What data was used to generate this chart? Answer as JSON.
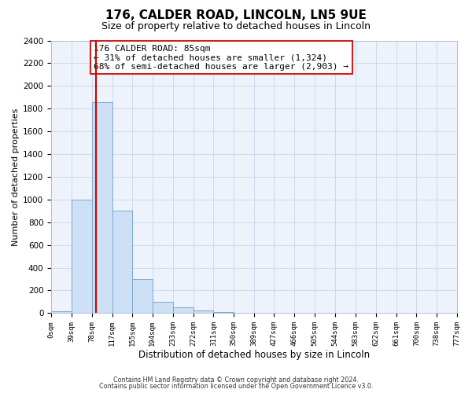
{
  "title": "176, CALDER ROAD, LINCOLN, LN5 9UE",
  "subtitle": "Size of property relative to detached houses in Lincoln",
  "xlabel": "Distribution of detached houses by size in Lincoln",
  "ylabel": "Number of detached properties",
  "bin_edges": [
    0,
    39,
    78,
    117,
    155,
    194,
    233,
    272,
    311,
    350,
    389,
    427,
    466,
    505,
    544,
    583,
    622,
    661,
    700,
    738,
    777
  ],
  "bin_labels": [
    "0sqm",
    "39sqm",
    "78sqm",
    "117sqm",
    "155sqm",
    "194sqm",
    "233sqm",
    "272sqm",
    "311sqm",
    "350sqm",
    "389sqm",
    "427sqm",
    "466sqm",
    "505sqm",
    "544sqm",
    "583sqm",
    "622sqm",
    "661sqm",
    "700sqm",
    "738sqm",
    "777sqm"
  ],
  "bar_heights": [
    15,
    1000,
    1860,
    900,
    300,
    100,
    50,
    25,
    10,
    0,
    0,
    0,
    0,
    0,
    0,
    0,
    0,
    0,
    0,
    0
  ],
  "bar_color": "#cde0f5",
  "bar_edge_color": "#7aa8d8",
  "ylim": [
    0,
    2400
  ],
  "yticks": [
    0,
    200,
    400,
    600,
    800,
    1000,
    1200,
    1400,
    1600,
    1800,
    2000,
    2200,
    2400
  ],
  "vline_x": 85,
  "vline_color": "#cc0000",
  "annotation_line1": "176 CALDER ROAD: 85sqm",
  "annotation_line2": "← 31% of detached houses are smaller (1,324)",
  "annotation_line3": "68% of semi-detached houses are larger (2,903) →",
  "footer_line1": "Contains HM Land Registry data © Crown copyright and database right 2024.",
  "footer_line2": "Contains public sector information licensed under the Open Government Licence v3.0.",
  "bg_color": "#ffffff",
  "plot_bg_color": "#eef3fb",
  "grid_color": "#c8d4e8"
}
